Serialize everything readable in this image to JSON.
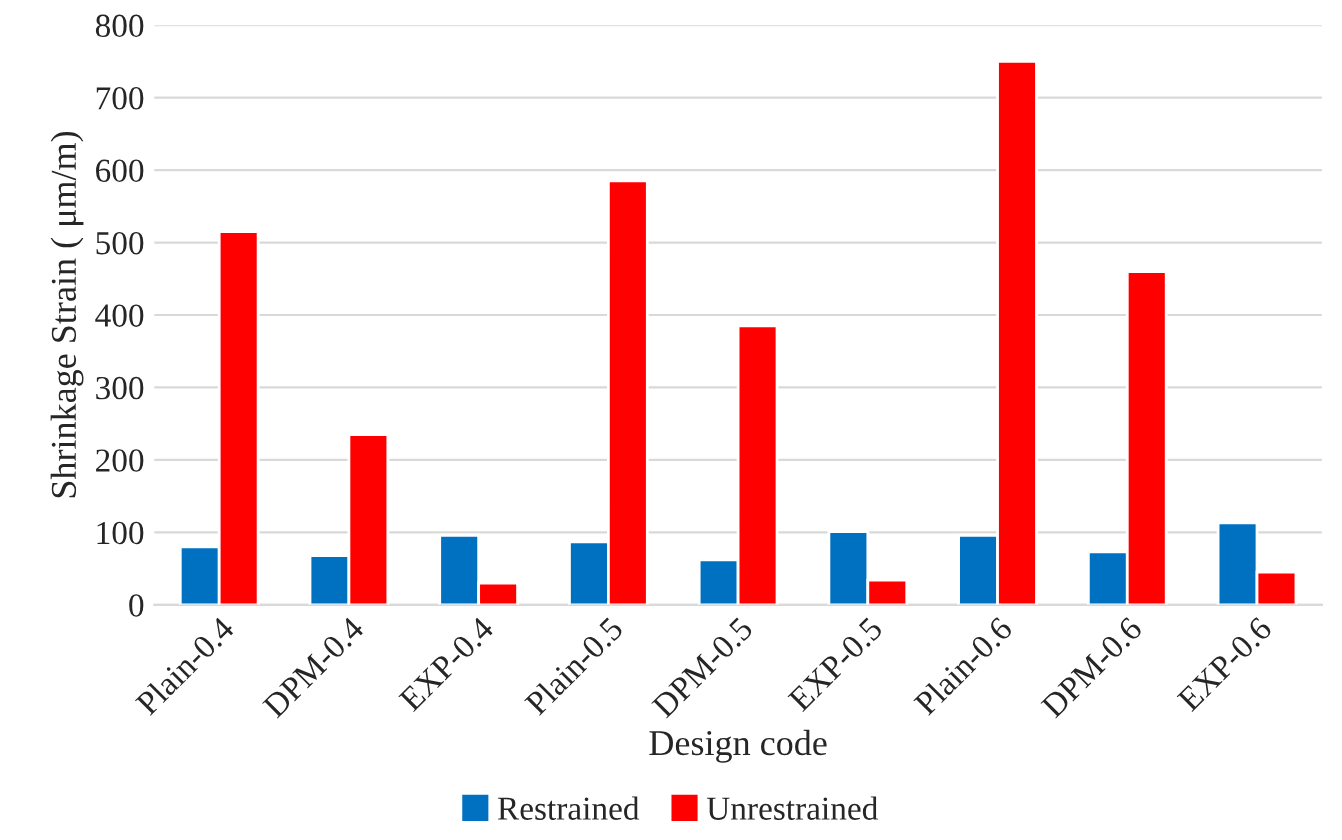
{
  "chart_data": {
    "type": "bar",
    "xlabel": "Design code",
    "ylabel": "Shrinkage Strain ( μm/m)",
    "categories": [
      "Plain-0.4",
      "DPM-0.4",
      "EXP-0.4",
      "Plain-0.5",
      "DPM-0.5",
      "EXP-0.5",
      "Plain-0.6",
      "DPM-0.6",
      "EXP-0.6"
    ],
    "series": [
      {
        "name": "Restrained",
        "color": "#0070c0",
        "values": [
          80,
          68,
          96,
          87,
          62,
          101,
          96,
          73,
          113
        ]
      },
      {
        "name": "Unrestrained",
        "color": "#ff0000",
        "values": [
          515,
          235,
          30,
          585,
          385,
          34,
          750,
          460,
          45
        ]
      }
    ],
    "ylim": [
      0,
      800
    ],
    "yticks": [
      0,
      100,
      200,
      300,
      400,
      500,
      600,
      700,
      800
    ],
    "grid": "y",
    "legend": "bottom"
  }
}
